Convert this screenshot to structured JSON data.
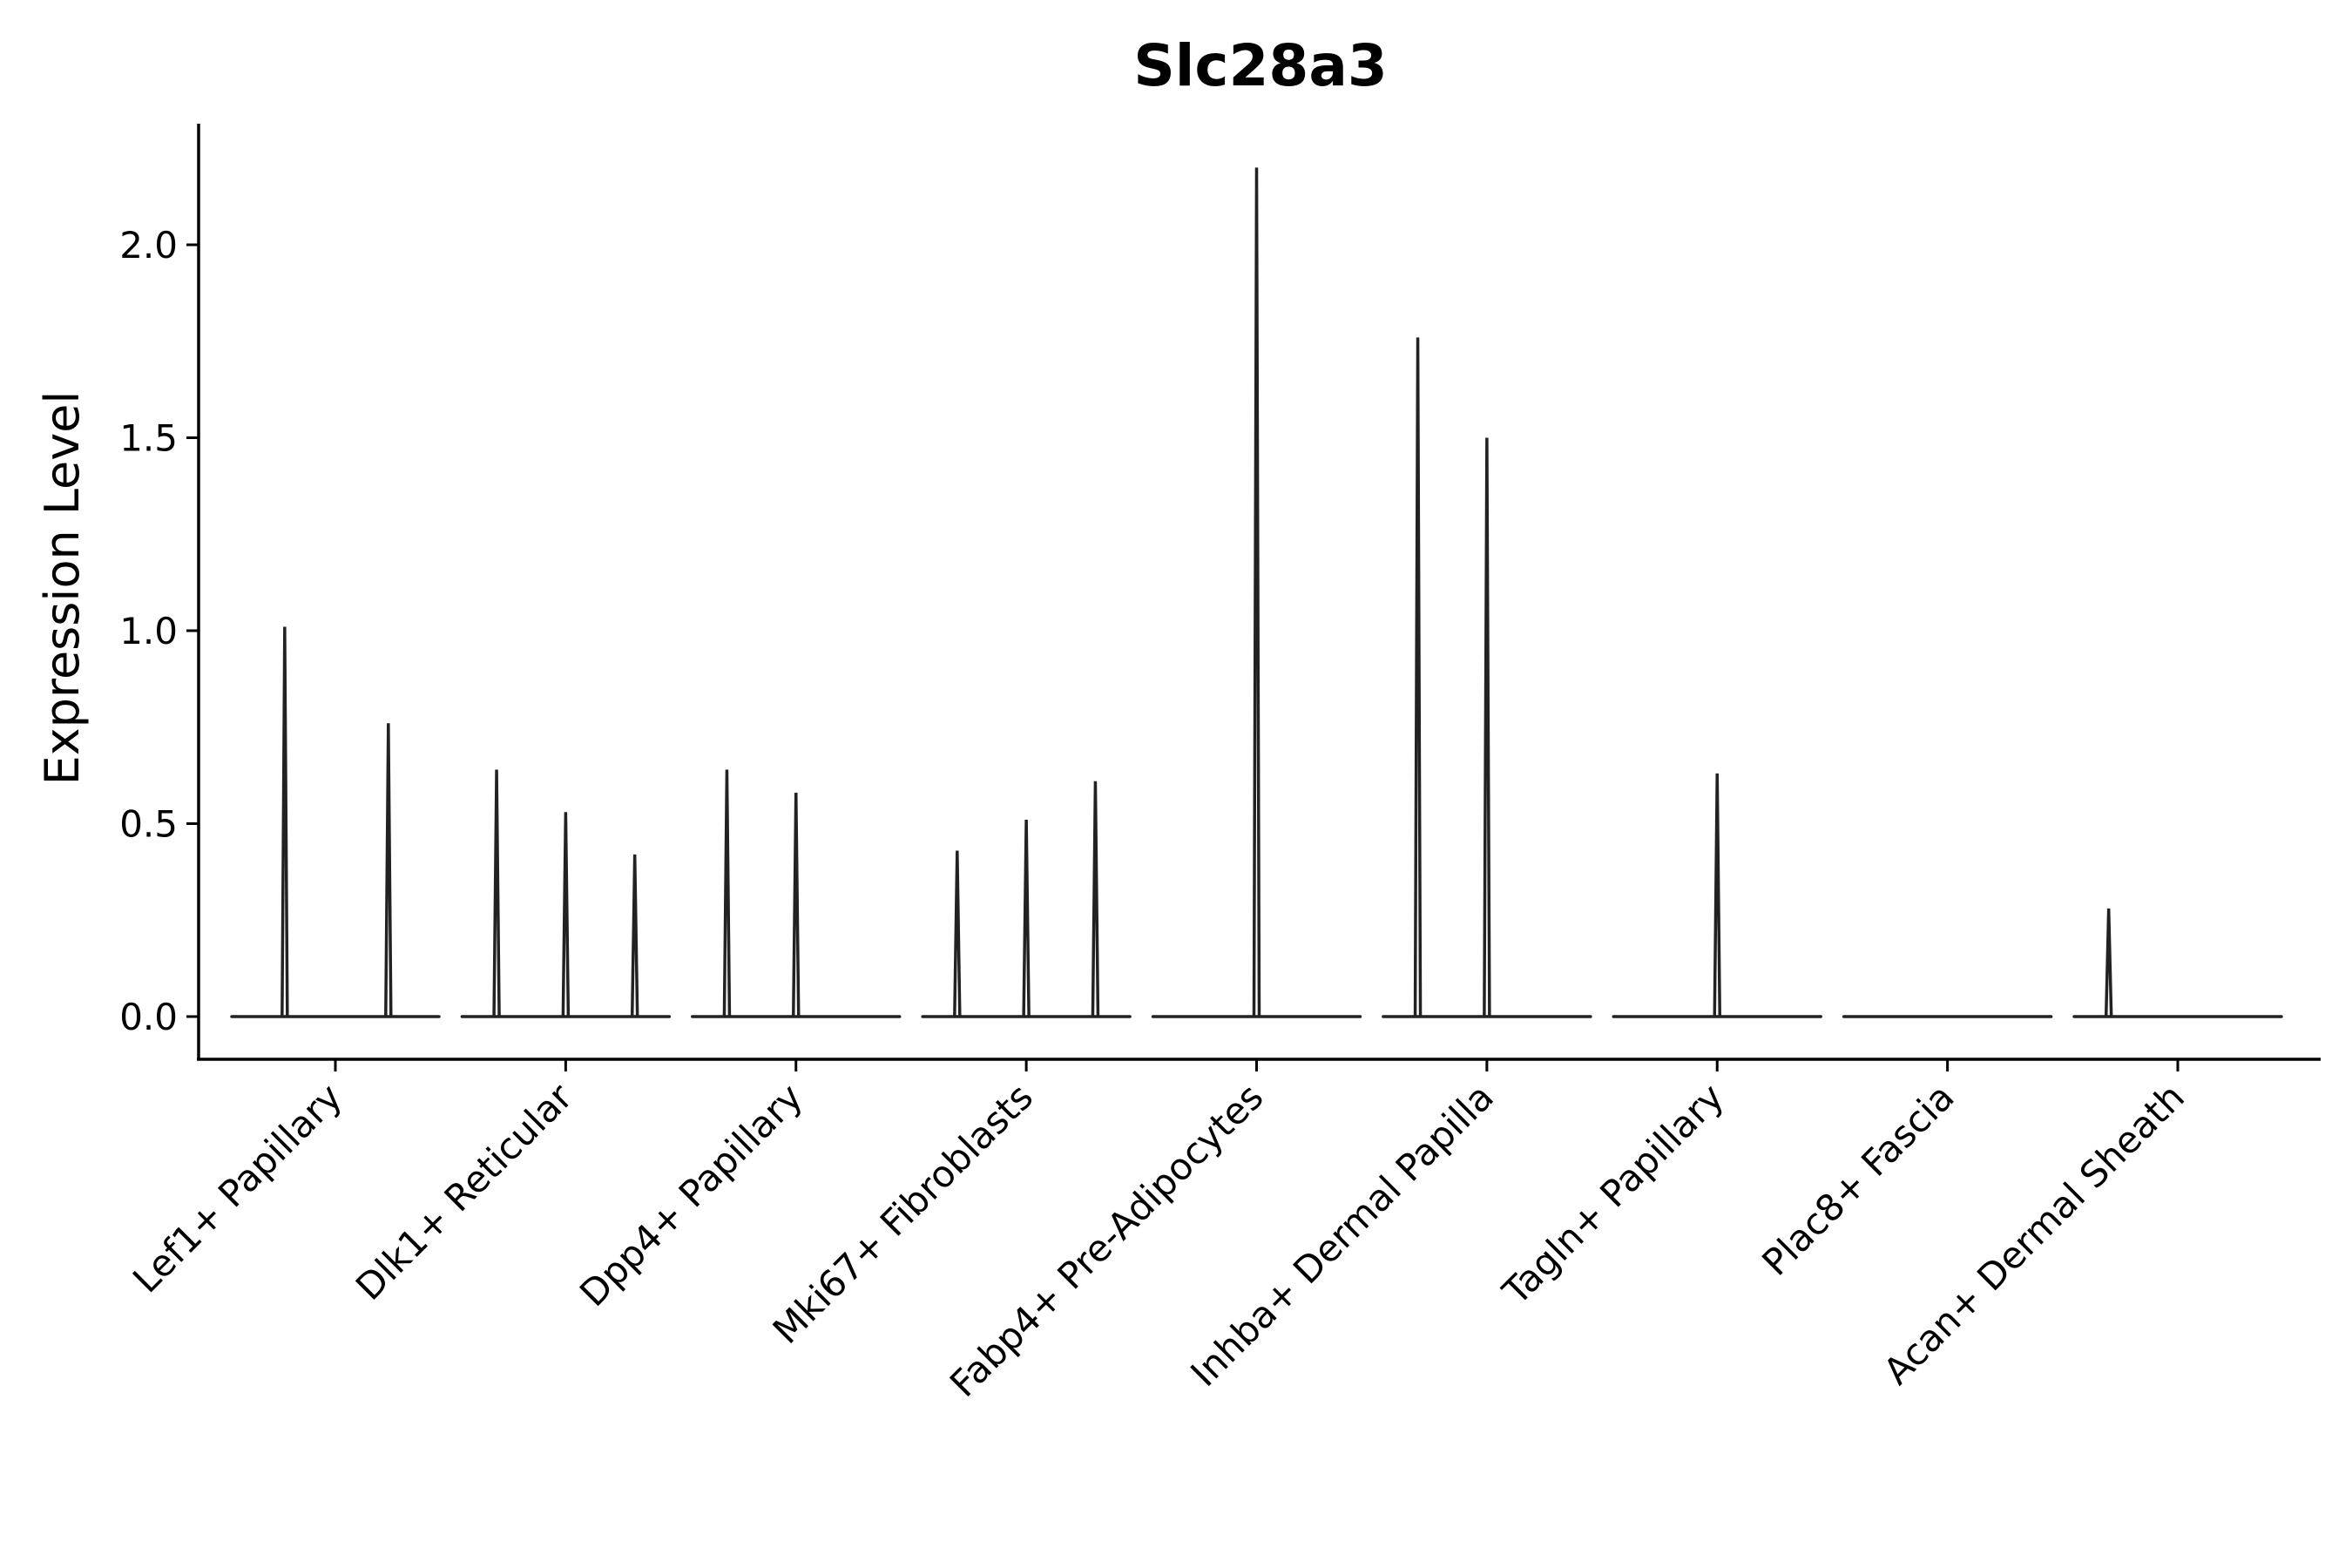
{
  "chart_data": {
    "type": "violin",
    "title": "Slc28a3",
    "xlabel": "",
    "ylabel": "Expression Level",
    "ylim": [
      -0.11,
      2.32
    ],
    "yticks": [
      "0.0",
      "0.5",
      "1.0",
      "1.5",
      "2.0"
    ],
    "ytick_values": [
      0.0,
      0.5,
      1.0,
      1.5,
      2.0
    ],
    "grid": false,
    "legend": "none",
    "categories": [
      "Lef1+ Papillary",
      "Dlk1+ Reticular",
      "Dpp4+ Papillary",
      "Mki67+ Fibroblasts",
      "Fabp4+ Pre-Adipocytes",
      "Inhba+ Dermal Papilla",
      "Tagln+ Papillary",
      "Plac8+ Fascia",
      "Acan+ Dermal Sheath"
    ],
    "series": [
      {
        "name": "Lef1+ Papillary",
        "spikes": [
          {
            "pos": -0.22,
            "max": 1.01
          },
          {
            "pos": 0.23,
            "max": 0.76
          }
        ]
      },
      {
        "name": "Dlk1+ Reticular",
        "spikes": [
          {
            "pos": -0.3,
            "max": 0.64
          },
          {
            "pos": 0.0,
            "max": 0.53
          },
          {
            "pos": 0.3,
            "max": 0.42
          }
        ]
      },
      {
        "name": "Dpp4+ Papillary",
        "spikes": [
          {
            "pos": -0.3,
            "max": 0.64
          },
          {
            "pos": 0.0,
            "max": 0.58
          }
        ]
      },
      {
        "name": "Mki67+ Fibroblasts",
        "spikes": [
          {
            "pos": -0.3,
            "max": 0.43
          },
          {
            "pos": 0.0,
            "max": 0.51
          },
          {
            "pos": 0.3,
            "max": 0.61
          }
        ]
      },
      {
        "name": "Fabp4+ Pre-Adipocytes",
        "spikes": [
          {
            "pos": 0.0,
            "max": 2.2
          }
        ]
      },
      {
        "name": "Inhba+ Dermal Papilla",
        "spikes": [
          {
            "pos": -0.3,
            "max": 1.76
          },
          {
            "pos": 0.0,
            "max": 1.5
          }
        ]
      },
      {
        "name": "Tagln+ Papillary",
        "spikes": [
          {
            "pos": 0.0,
            "max": 0.63
          }
        ]
      },
      {
        "name": "Plac8+ Fascia",
        "spikes": []
      },
      {
        "name": "Acan+ Dermal Sheath",
        "spikes": [
          {
            "pos": -0.3,
            "max": 0.28
          }
        ]
      }
    ],
    "colors": {
      "violin": "#222222",
      "axis": "#000000"
    }
  }
}
